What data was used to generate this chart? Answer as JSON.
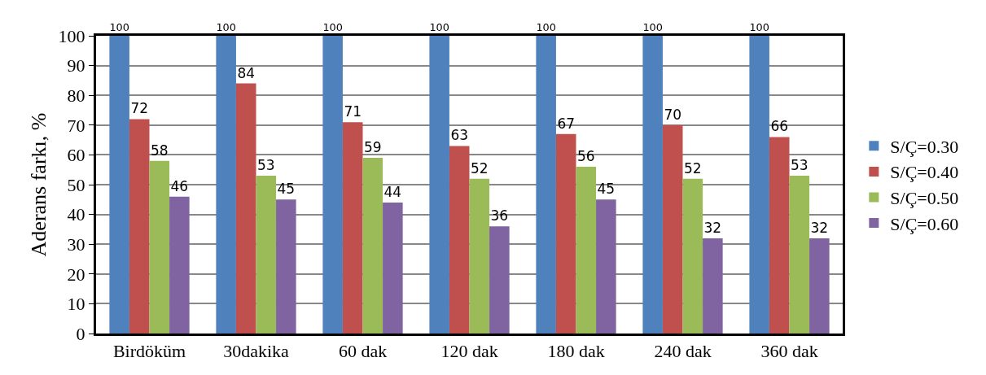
{
  "chart_data": {
    "type": "bar",
    "ylabel": "Aderans farkı, %",
    "categories": [
      "Birdöküm",
      "30dakika",
      "60 dak",
      "120 dak",
      "180 dak",
      "240 dak",
      "360 dak"
    ],
    "series": [
      {
        "name": "S/Ç=0.30",
        "color": "#4f81bd",
        "values": [
          100,
          100,
          100,
          100,
          100,
          100,
          100
        ]
      },
      {
        "name": "S/Ç=0.40",
        "color": "#c0504d",
        "values": [
          72,
          84,
          71,
          63,
          67,
          70,
          66
        ]
      },
      {
        "name": "S/Ç=0.50",
        "color": "#9bbb59",
        "values": [
          58,
          53,
          59,
          52,
          56,
          52,
          53
        ]
      },
      {
        "name": "S/Ç=0.60",
        "color": "#8064a2",
        "values": [
          46,
          45,
          44,
          36,
          45,
          32,
          32
        ]
      }
    ],
    "ylim": [
      0,
      100
    ],
    "yticks": [
      0,
      10,
      20,
      30,
      40,
      50,
      60,
      70,
      80,
      90,
      100
    ],
    "grid": "y",
    "legend": "right",
    "data_labels": true
  }
}
